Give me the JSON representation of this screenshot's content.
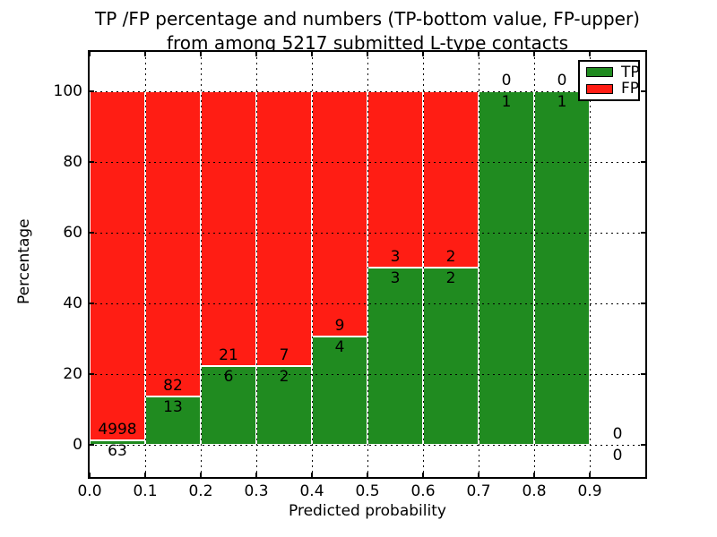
{
  "figure": {
    "title_line1": "TP /FP percentage and numbers (TP-bottom value, FP-upper)",
    "title_line2": "from among 5217 submitted L-type contacts"
  },
  "chart_data": {
    "type": "bar",
    "stacked": true,
    "title": "TP /FP percentage and numbers (TP-bottom value, FP-upper) from among 5217 submitted L-type contacts",
    "xlabel": "Predicted probability",
    "ylabel": "Percentage",
    "xlim": [
      0.0,
      1.0
    ],
    "ylim": [
      -9,
      111
    ],
    "grid": true,
    "legend_position": "upper right",
    "x_ticks": [
      0.0,
      0.1,
      0.2,
      0.3,
      0.4,
      0.5,
      0.6,
      0.7,
      0.8,
      0.9
    ],
    "x_tick_labels": [
      "0.0",
      "0.1",
      "0.2",
      "0.3",
      "0.4",
      "0.5",
      "0.6",
      "0.7",
      "0.8",
      "0.9"
    ],
    "y_ticks": [
      0,
      20,
      40,
      60,
      80,
      100
    ],
    "y_tick_labels": [
      "0",
      "20",
      "40",
      "60",
      "80",
      "100"
    ],
    "legend": [
      {
        "label": "TP",
        "color": "#208b20"
      },
      {
        "label": "FP",
        "color": "#ff1d14"
      }
    ],
    "total_contacts": 5217,
    "bins": [
      {
        "range": [
          0.0,
          0.1
        ],
        "tp": 63,
        "fp": 4998,
        "tp_percent": 1.24
      },
      {
        "range": [
          0.1,
          0.2
        ],
        "tp": 13,
        "fp": 82,
        "tp_percent": 13.68
      },
      {
        "range": [
          0.2,
          0.3
        ],
        "tp": 6,
        "fp": 21,
        "tp_percent": 22.22
      },
      {
        "range": [
          0.3,
          0.4
        ],
        "tp": 2,
        "fp": 7,
        "tp_percent": 22.22
      },
      {
        "range": [
          0.4,
          0.5
        ],
        "tp": 4,
        "fp": 9,
        "tp_percent": 30.77
      },
      {
        "range": [
          0.5,
          0.6
        ],
        "tp": 3,
        "fp": 3,
        "tp_percent": 50.0
      },
      {
        "range": [
          0.6,
          0.7
        ],
        "tp": 2,
        "fp": 2,
        "tp_percent": 50.0
      },
      {
        "range": [
          0.7,
          0.8
        ],
        "tp": 1,
        "fp": 0,
        "tp_percent": 100.0
      },
      {
        "range": [
          0.8,
          0.9
        ],
        "tp": 1,
        "fp": 0,
        "tp_percent": 100.0
      },
      {
        "range": [
          0.9,
          1.0
        ],
        "tp": 0,
        "fp": 0,
        "tp_percent": 0.0
      }
    ],
    "colors": {
      "tp": "#208b20",
      "fp": "#ff1d14",
      "bar_edge": "#ffffff",
      "grid": "#000000",
      "spine": "#000000",
      "background": "#ffffff"
    }
  }
}
